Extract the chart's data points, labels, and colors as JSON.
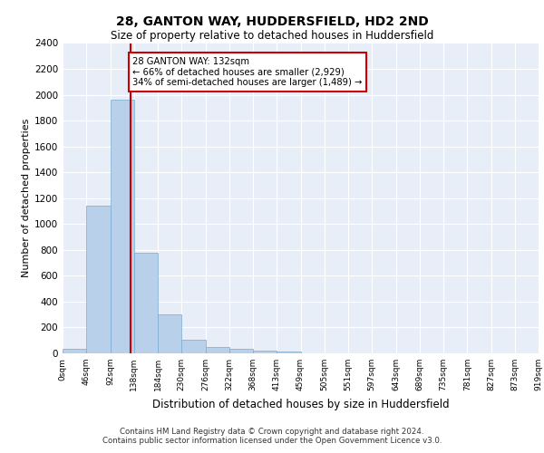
{
  "title1": "28, GANTON WAY, HUDDERSFIELD, HD2 2ND",
  "title2": "Size of property relative to detached houses in Huddersfield",
  "xlabel": "Distribution of detached houses by size in Huddersfield",
  "ylabel": "Number of detached properties",
  "footer1": "Contains HM Land Registry data © Crown copyright and database right 2024.",
  "footer2": "Contains public sector information licensed under the Open Government Licence v3.0.",
  "bin_labels": [
    "0sqm",
    "46sqm",
    "92sqm",
    "138sqm",
    "184sqm",
    "230sqm",
    "276sqm",
    "322sqm",
    "368sqm",
    "413sqm",
    "459sqm",
    "505sqm",
    "551sqm",
    "597sqm",
    "643sqm",
    "689sqm",
    "735sqm",
    "781sqm",
    "827sqm",
    "873sqm",
    "919sqm"
  ],
  "bar_values": [
    35,
    1140,
    1960,
    775,
    300,
    105,
    47,
    37,
    22,
    12,
    0,
    0,
    0,
    0,
    0,
    0,
    0,
    0,
    0,
    0
  ],
  "bar_color": "#b8d0ea",
  "bar_edge_color": "#7aaad0",
  "bar_edge_width": 0.5,
  "property_line_color": "#cc0000",
  "annotation_text": "28 GANTON WAY: 132sqm\n← 66% of detached houses are smaller (2,929)\n34% of semi-detached houses are larger (1,489) →",
  "annotation_box_edge_color": "#cc0000",
  "ylim_max": 2400,
  "yticks": [
    0,
    200,
    400,
    600,
    800,
    1000,
    1200,
    1400,
    1600,
    1800,
    2000,
    2200,
    2400
  ],
  "bin_width": 46,
  "num_bins": 20,
  "property_sqm": 132,
  "bg_color": "#e8eef8"
}
